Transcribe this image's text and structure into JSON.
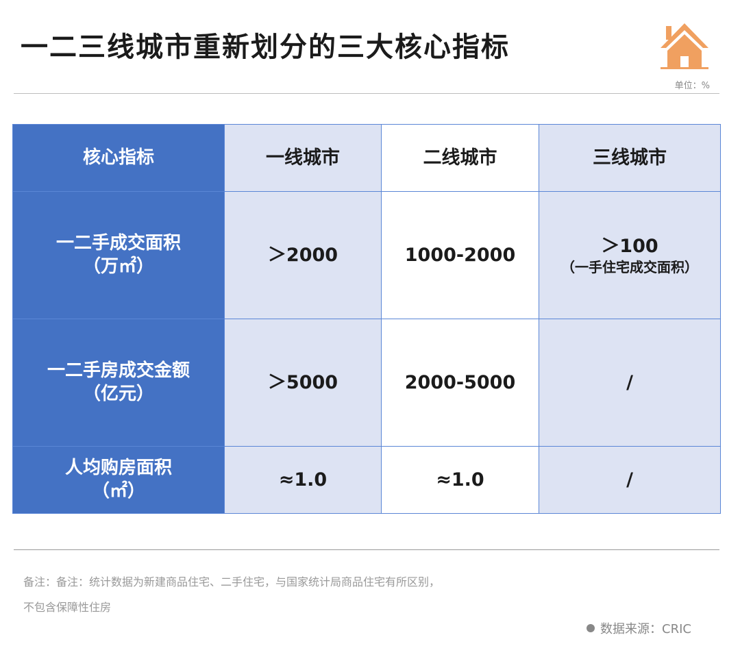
{
  "title": "一二三线城市重新划分的三大核心指标",
  "unit": "单位：%",
  "icon": "house-icon",
  "colors": {
    "header": "#4472c4",
    "light_cell": "#dde3f3",
    "icon": "#f0a060"
  },
  "table": {
    "headers": [
      "核心指标",
      "一线城市",
      "二线城市",
      "三线城市"
    ],
    "rows": [
      {
        "label": "一二手成交面积",
        "unit": "（万㎡）",
        "values": [
          "＞2000",
          "1000-2000",
          "＞100"
        ],
        "note3": "（一手住宅成交面积）"
      },
      {
        "label": "一二手房成交金额",
        "unit": "（亿元）",
        "values": [
          "＞5000",
          "2000-5000",
          "/"
        ]
      },
      {
        "label": "人均购房面积",
        "unit": "（㎡）",
        "values": [
          "≈1.0",
          "≈1.0",
          "/"
        ]
      }
    ]
  },
  "footnote": {
    "line1": "备注：备注：统计数据为新建商品住宅、二手住宅，与国家统计局商品住宅有所区别，",
    "line2": "不包含保障性住房"
  },
  "source": "数据来源：CRIC"
}
